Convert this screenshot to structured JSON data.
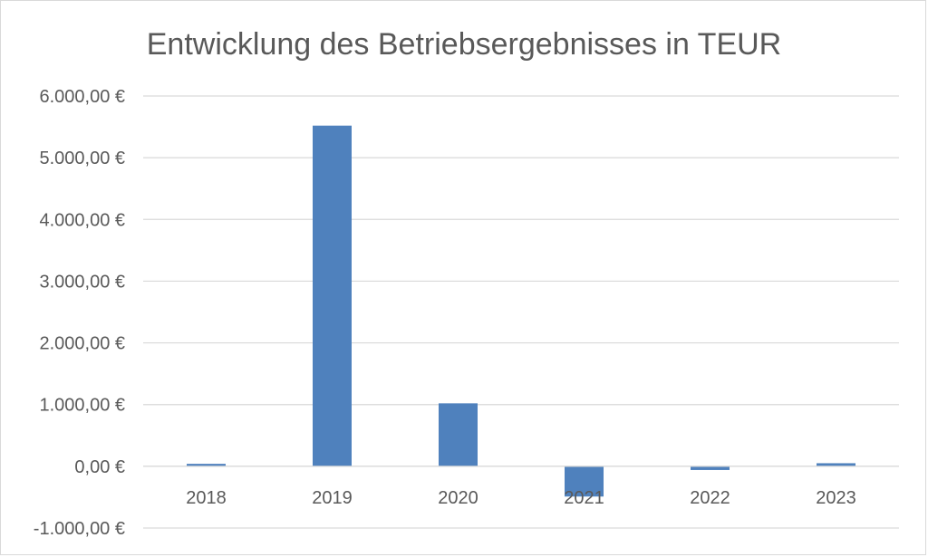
{
  "chart_data": {
    "type": "bar",
    "title": "Entwicklung des Betriebsergebnisses in TEUR",
    "categories": [
      "2018",
      "2019",
      "2020",
      "2021",
      "2022",
      "2023"
    ],
    "values": [
      40,
      5520,
      1020,
      -490,
      -60,
      50
    ],
    "y_ticks": [
      -1000,
      0,
      1000,
      2000,
      3000,
      4000,
      5000,
      6000
    ],
    "y_tick_labels": [
      "-1.000,00 €",
      "0,00 €",
      "1.000,00 €",
      "2.000,00 €",
      "3.000,00 €",
      "4.000,00 €",
      "5.000,00 €",
      "6.000,00 €"
    ],
    "ylim": [
      -1000,
      6000
    ],
    "grid": true,
    "bar_color": "#4f81bd",
    "legend": "none"
  }
}
